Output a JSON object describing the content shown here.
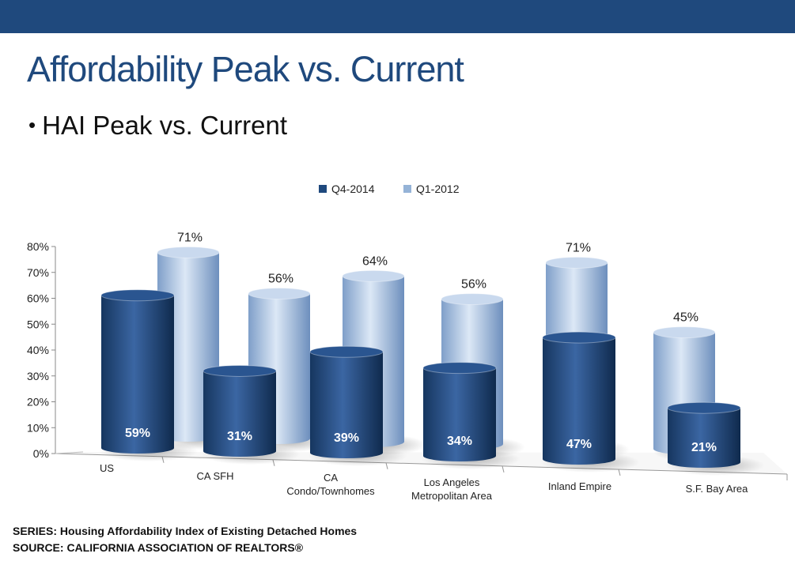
{
  "slide": {
    "title": "Affordability Peak vs. Current",
    "bullet": "HAI Peak vs. Current"
  },
  "colors": {
    "bar_dark": "#1f497d",
    "bar_light": "#95b3d7",
    "accent": "#1f497d"
  },
  "footer": {
    "series": "SERIES: Housing Affordability Index of Existing Detached Homes",
    "source": "SOURCE:  CALIFORNIA ASSOCIATION OF REALTORS®"
  },
  "chart_data": {
    "type": "bar",
    "categories": [
      "US",
      "CA SFH",
      "CA\nCondo/Townhomes",
      "Los Angeles\nMetropolitan Area",
      "Inland Empire",
      "S.F. Bay Area"
    ],
    "series": [
      {
        "name": "Q4-2014",
        "values": [
          59,
          31,
          39,
          34,
          47,
          21
        ],
        "labels": [
          "59%",
          "31%",
          "39%",
          "34%",
          "47%",
          "21%"
        ],
        "color": "#1f497d"
      },
      {
        "name": "Q1-2012",
        "values": [
          71,
          56,
          64,
          56,
          71,
          45
        ],
        "labels": [
          "71%",
          "56%",
          "64%",
          "56%",
          "71%",
          "45%"
        ],
        "color": "#95b3d7"
      }
    ],
    "ylim": [
      0,
      80
    ],
    "yticks": [
      "0%",
      "10%",
      "20%",
      "30%",
      "40%",
      "50%",
      "60%",
      "70%",
      "80%"
    ],
    "legend_position": "top-center",
    "grid": false,
    "style": "3d-cylinder"
  }
}
